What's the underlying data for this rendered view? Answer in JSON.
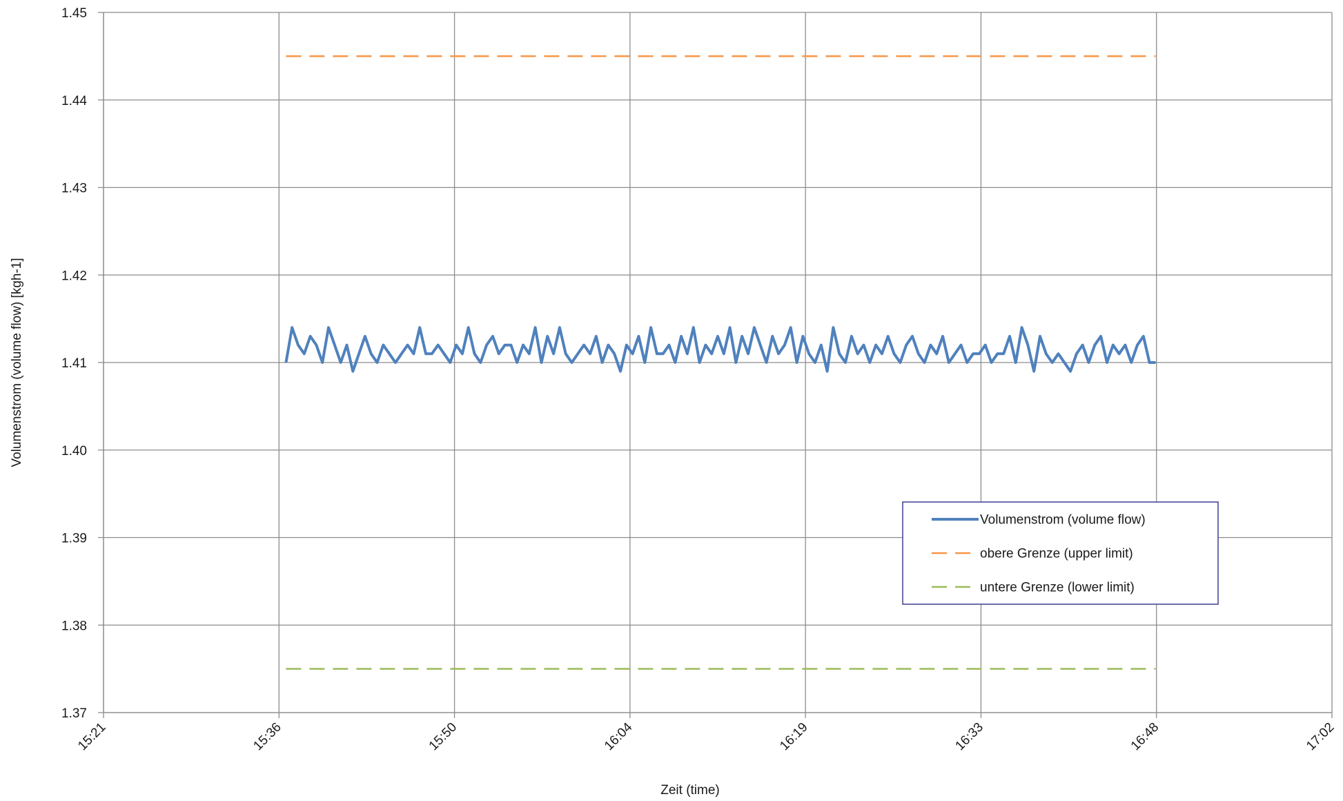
{
  "chart_data": {
    "type": "line",
    "title": "",
    "xlabel": "Zeit (time)",
    "ylabel": "Volumenstrom (volume flow) [kgh-1]",
    "ylim": [
      1.37,
      1.45
    ],
    "yticks": [
      "1.37",
      "1.38",
      "1.39",
      "1.40",
      "1.41",
      "1.42",
      "1.43",
      "1.44",
      "1.45"
    ],
    "xlim": [
      "15:21",
      "17:02"
    ],
    "xticks": [
      "15:21",
      "15:36",
      "15:50",
      "16:04",
      "16:19",
      "16:33",
      "16:48",
      "17:02"
    ],
    "grid": true,
    "legend_position": "center-right",
    "series": [
      {
        "name": "Volumenstrom (volume flow)",
        "color": "#4f81bd",
        "style": "solid",
        "x": [
          "15:36",
          "15:36",
          "15:37",
          "15:37",
          "15:38",
          "15:38",
          "15:39",
          "15:39",
          "15:40",
          "15:40",
          "15:41",
          "15:41",
          "15:42",
          "15:42",
          "15:43",
          "15:43",
          "15:44",
          "15:44",
          "15:45",
          "15:45",
          "15:46",
          "15:46",
          "15:47",
          "15:47",
          "15:48",
          "15:48",
          "15:49",
          "15:49",
          "15:50",
          "15:50",
          "15:51",
          "15:51",
          "15:52",
          "15:52",
          "15:53",
          "15:53",
          "15:54",
          "15:54",
          "15:55",
          "15:55",
          "15:56",
          "15:56",
          "15:57",
          "15:57",
          "15:58",
          "15:58",
          "15:59",
          "15:59",
          "16:00",
          "16:00",
          "16:01",
          "16:01",
          "16:02",
          "16:02",
          "16:03",
          "16:03",
          "16:04",
          "16:04",
          "16:05",
          "16:05",
          "16:06",
          "16:06",
          "16:07",
          "16:07",
          "16:08",
          "16:08",
          "16:09",
          "16:09",
          "16:10",
          "16:10",
          "16:11",
          "16:11",
          "16:12",
          "16:12",
          "16:13",
          "16:13",
          "16:14",
          "16:14",
          "16:15",
          "16:15",
          "16:16",
          "16:16",
          "16:17",
          "16:17",
          "16:18",
          "16:18",
          "16:19",
          "16:19",
          "16:20",
          "16:20",
          "16:21",
          "16:21",
          "16:22",
          "16:22",
          "16:23",
          "16:23",
          "16:24",
          "16:24",
          "16:25",
          "16:25",
          "16:26",
          "16:26",
          "16:27",
          "16:27",
          "16:28",
          "16:28",
          "16:29",
          "16:29",
          "16:30",
          "16:30",
          "16:31",
          "16:31",
          "16:32",
          "16:32",
          "16:33",
          "16:33",
          "16:34",
          "16:34",
          "16:35",
          "16:35",
          "16:36",
          "16:36",
          "16:37",
          "16:37",
          "16:38",
          "16:38",
          "16:39",
          "16:39",
          "16:40",
          "16:40",
          "16:41",
          "16:41",
          "16:42",
          "16:42",
          "16:43",
          "16:43",
          "16:44",
          "16:44",
          "16:45",
          "16:45",
          "16:46",
          "16:46",
          "16:47",
          "16:47"
        ],
        "values": [
          1.41,
          1.414,
          1.412,
          1.411,
          1.413,
          1.412,
          1.41,
          1.414,
          1.412,
          1.41,
          1.412,
          1.409,
          1.411,
          1.413,
          1.411,
          1.41,
          1.412,
          1.411,
          1.41,
          1.411,
          1.412,
          1.411,
          1.414,
          1.411,
          1.411,
          1.412,
          1.411,
          1.41,
          1.412,
          1.411,
          1.414,
          1.411,
          1.41,
          1.412,
          1.413,
          1.411,
          1.412,
          1.412,
          1.41,
          1.412,
          1.411,
          1.414,
          1.41,
          1.413,
          1.411,
          1.414,
          1.411,
          1.41,
          1.411,
          1.412,
          1.411,
          1.413,
          1.41,
          1.412,
          1.411,
          1.409,
          1.412,
          1.411,
          1.413,
          1.41,
          1.414,
          1.411,
          1.411,
          1.412,
          1.41,
          1.413,
          1.411,
          1.414,
          1.41,
          1.412,
          1.411,
          1.413,
          1.411,
          1.414,
          1.41,
          1.413,
          1.411,
          1.414,
          1.412,
          1.41,
          1.413,
          1.411,
          1.412,
          1.414,
          1.41,
          1.413,
          1.411,
          1.41,
          1.412,
          1.409,
          1.414,
          1.411,
          1.41,
          1.413,
          1.411,
          1.412,
          1.41,
          1.412,
          1.411,
          1.413,
          1.411,
          1.41,
          1.412,
          1.413,
          1.411,
          1.41,
          1.412,
          1.411,
          1.413,
          1.41,
          1.411,
          1.412,
          1.41,
          1.411,
          1.411,
          1.412,
          1.41,
          1.411,
          1.411,
          1.413,
          1.41,
          1.414,
          1.412,
          1.409,
          1.413,
          1.411,
          1.41,
          1.411,
          1.41,
          1.409,
          1.411,
          1.412,
          1.41,
          1.412,
          1.413,
          1.41,
          1.412,
          1.411,
          1.412,
          1.41,
          1.412,
          1.413,
          1.41,
          1.41
        ]
      },
      {
        "name": "obere Grenze (upper limit)",
        "color": "#f79646",
        "style": "dashed",
        "x": [
          "15:36",
          "16:47"
        ],
        "values": [
          1.445,
          1.445
        ]
      },
      {
        "name": "untere Grenze (lower limit)",
        "color": "#9bbb59",
        "style": "dashed",
        "x": [
          "15:36",
          "16:47"
        ],
        "values": [
          1.375,
          1.375
        ]
      }
    ]
  }
}
